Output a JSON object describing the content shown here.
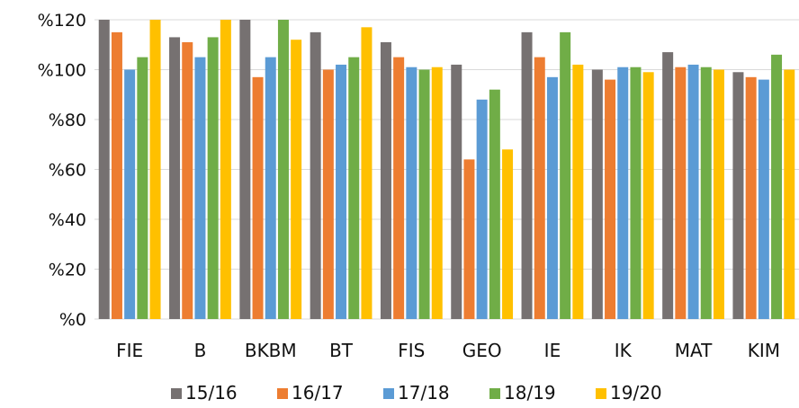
{
  "chart_data": {
    "type": "bar",
    "title": "",
    "xlabel": "",
    "ylabel": "",
    "ylim": [
      0,
      120
    ],
    "ytick_labels": [
      "%0",
      "%20",
      "%40",
      "%60",
      "%80",
      "%100",
      "%120"
    ],
    "yticks": [
      0,
      20,
      40,
      60,
      80,
      100,
      120
    ],
    "grid": true,
    "legend_position": "bottom",
    "categories": [
      "FIE",
      "B",
      "BKBM",
      "BT",
      "FIS",
      "GEO",
      "IE",
      "IK",
      "MAT",
      "KIM"
    ],
    "series": [
      {
        "name": "15/16",
        "color": "#767171",
        "values": [
          120,
          113,
          120,
          115,
          111,
          102,
          115,
          100,
          107,
          99
        ]
      },
      {
        "name": "16/17",
        "color": "#ED7D31",
        "values": [
          115,
          111,
          97,
          100,
          105,
          64,
          105,
          96,
          101,
          97
        ]
      },
      {
        "name": "17/18",
        "color": "#5B9BD5",
        "values": [
          100,
          105,
          105,
          102,
          101,
          88,
          97,
          101,
          102,
          96
        ]
      },
      {
        "name": "18/19",
        "color": "#70AD47",
        "values": [
          105,
          113,
          120,
          105,
          100,
          92,
          115,
          101,
          101,
          106
        ]
      },
      {
        "name": "19/20",
        "color": "#FFC000",
        "values": [
          120,
          120,
          112,
          117,
          101,
          68,
          102,
          99,
          100,
          100
        ]
      }
    ]
  }
}
